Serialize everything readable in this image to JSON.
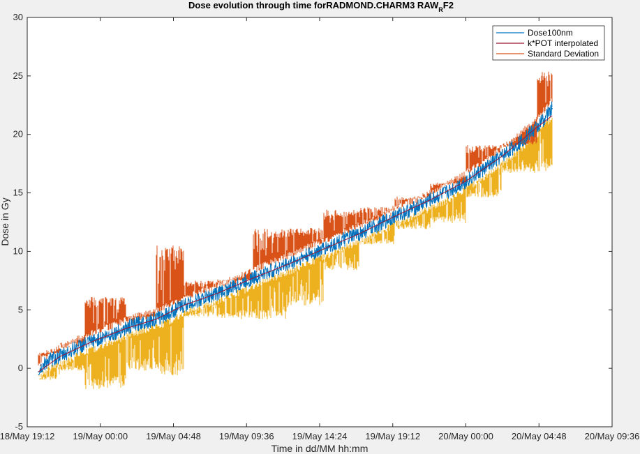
{
  "chart_data": {
    "type": "line",
    "title": "Dose evolution through time forRADMOND.CHARM3 RAW",
    "title_sub": "R",
    "title_tail": "F2",
    "xlabel": "Time in dd/MM hh:mm",
    "ylabel": "Dose in Gy",
    "xlim": [
      "2018-05-18T19:12",
      "2018-05-20T09:36"
    ],
    "ylim": [
      -5,
      30
    ],
    "x_ticks": [
      "2018-05-18T19:12",
      "2018-05-19T00:00",
      "2018-05-19T04:48",
      "2018-05-19T09:36",
      "2018-05-19T14:24",
      "2018-05-19T19:12",
      "2018-05-20T00:00",
      "2018-05-20T04:48",
      "2018-05-20T09:36"
    ],
    "x_tick_labels": [
      "18/May 19:12",
      "19/May 00:00",
      "19/May 04:48",
      "19/May 09:36",
      "19/May 14:24",
      "19/May 19:12",
      "20/May 00:00",
      "20/May 04:48",
      "20/May 09:36"
    ],
    "y_ticks": [
      -5,
      0,
      5,
      10,
      15,
      20,
      25,
      30
    ],
    "y_tick_labels": [
      "-5",
      "0",
      "5",
      "10",
      "15",
      "20",
      "25",
      "30"
    ],
    "grid": false,
    "legend_position": "top-right",
    "legend": [
      {
        "label": "Dose100nm",
        "color": "#0072bd"
      },
      {
        "label": "k*POT interpolated",
        "color": "#a2142f"
      },
      {
        "label": "Standard Deviation",
        "color": "#d95319"
      }
    ],
    "series": [
      {
        "name": "Dose100nm",
        "color": "#0072bd",
        "x": [
          "2018-05-18T19:56",
          "2018-05-18T20:30",
          "2018-05-18T21:20",
          "2018-05-18T22:20",
          "2018-05-18T23:30",
          "2018-05-19T00:40",
          "2018-05-19T01:40",
          "2018-05-19T02:40",
          "2018-05-19T03:40",
          "2018-05-19T04:30",
          "2018-05-19T05:30",
          "2018-05-19T06:40",
          "2018-05-19T07:40",
          "2018-05-19T08:50",
          "2018-05-19T10:00",
          "2018-05-19T11:10",
          "2018-05-19T12:20",
          "2018-05-19T13:30",
          "2018-05-19T14:40",
          "2018-05-19T15:50",
          "2018-05-19T17:00",
          "2018-05-19T18:10",
          "2018-05-19T19:20",
          "2018-05-19T20:30",
          "2018-05-19T21:40",
          "2018-05-19T22:50",
          "2018-05-20T00:00",
          "2018-05-20T01:10",
          "2018-05-20T02:20",
          "2018-05-20T03:30",
          "2018-05-20T04:40",
          "2018-05-20T05:40"
        ],
        "y": [
          -0.3,
          0.6,
          1.0,
          1.7,
          2.3,
          2.9,
          3.4,
          3.9,
          4.2,
          4.7,
          5.4,
          5.9,
          6.4,
          7.0,
          7.7,
          8.3,
          8.9,
          9.6,
          10.2,
          10.9,
          11.5,
          12.2,
          13.0,
          13.6,
          14.4,
          15.1,
          16.0,
          17.0,
          18.1,
          19.3,
          20.6,
          22.2
        ]
      },
      {
        "name": "k*POT interpolated",
        "color": "#a2142f",
        "x": [
          "2018-05-18T19:56",
          "2018-05-18T21:20",
          "2018-05-18T23:30",
          "2018-05-19T01:40",
          "2018-05-19T03:40",
          "2018-05-19T05:30",
          "2018-05-19T07:40",
          "2018-05-19T10:00",
          "2018-05-19T12:20",
          "2018-05-19T14:40",
          "2018-05-19T17:00",
          "2018-05-19T19:20",
          "2018-05-19T21:40",
          "2018-05-20T00:00",
          "2018-05-20T02:20",
          "2018-05-20T04:40",
          "2018-05-20T05:40"
        ],
        "y": [
          -0.3,
          1.0,
          2.3,
          3.4,
          4.2,
          5.4,
          6.4,
          7.7,
          8.9,
          10.2,
          11.5,
          13.0,
          14.4,
          16.0,
          18.1,
          20.6,
          21.6
        ]
      },
      {
        "name": "Standard Deviation",
        "color": "#d95319",
        "x": [
          "2018-05-18T19:56",
          "2018-05-18T21:20",
          "2018-05-18T23:00",
          "2018-05-19T01:40",
          "2018-05-19T03:40",
          "2018-05-19T05:30",
          "2018-05-19T07:40",
          "2018-05-19T10:00",
          "2018-05-19T12:20",
          "2018-05-19T14:40",
          "2018-05-19T17:00",
          "2018-05-19T19:20",
          "2018-05-19T21:40",
          "2018-05-20T00:00",
          "2018-05-20T02:20",
          "2018-05-20T04:40",
          "2018-05-20T05:40"
        ],
        "y_upper": [
          1.4,
          2.2,
          6.1,
          4.5,
          10.5,
          7.5,
          7.6,
          12.0,
          12.0,
          13.6,
          13.8,
          14.7,
          15.9,
          19.1,
          19.1,
          25.4,
          25.2
        ],
        "y_lower": [
          -1.0,
          -0.2,
          -1.8,
          -0.2,
          -0.6,
          4.4,
          4.2,
          4.2,
          5.3,
          8.4,
          10.6,
          11.9,
          12.4,
          14.6,
          16.7,
          16.7,
          20.4
        ]
      }
    ]
  }
}
